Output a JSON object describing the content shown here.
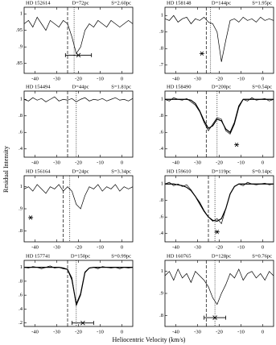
{
  "ylabel": "Residual Intensity",
  "xlabel": "Heliocentric Velocity (km/s)",
  "chart_data": [
    {
      "type": "line",
      "title": "HD 152614",
      "distance": "D=72pc",
      "size": "S=2.60pc",
      "x": [
        -45,
        -43,
        -41,
        -39,
        -37,
        -35,
        -33,
        -31,
        -29,
        -27,
        -25,
        -23,
        -21,
        -19,
        -17,
        -15,
        -13,
        -11,
        -9,
        -7,
        -5,
        -3,
        -1,
        1,
        3,
        5
      ],
      "values": [
        0.97,
        0.98,
        0.96,
        0.99,
        0.97,
        0.95,
        0.98,
        0.97,
        0.96,
        0.98,
        0.97,
        0.93,
        0.88,
        0.9,
        0.95,
        0.97,
        0.96,
        0.98,
        0.97,
        0.96,
        0.98,
        0.97,
        0.96,
        0.97,
        0.98,
        0.97
      ],
      "xlim": [
        -45,
        5
      ],
      "xticks": [
        -40,
        -30,
        -20,
        -10,
        0
      ],
      "ylim": [
        0.82,
        1.02
      ],
      "yticks": [
        1,
        {
          "value": 0.95,
          "label": ".95"
        },
        {
          "value": 0.9,
          "label": ".9"
        },
        {
          "value": 0.85,
          "label": ".85"
        }
      ],
      "vlines": [
        {
          "x": -25,
          "style": "dashed"
        },
        {
          "x": -22,
          "style": "dotted"
        }
      ],
      "errorbar": {
        "x": -20,
        "xerr": 6,
        "y": 0.875
      }
    },
    {
      "type": "line",
      "title": "HD 158148",
      "distance": "D=144pc",
      "size": "S=1.95pc",
      "x": [
        -45,
        -43,
        -41,
        -39,
        -37,
        -35,
        -33,
        -31,
        -29,
        -27,
        -25,
        -23,
        -21,
        -19,
        -17,
        -15,
        -13,
        -11,
        -9,
        -7,
        -5,
        -3,
        -1,
        1,
        3,
        5
      ],
      "values": [
        0.98,
        0.97,
        1.0,
        0.96,
        0.98,
        0.99,
        0.95,
        0.98,
        0.97,
        0.99,
        0.96,
        0.95,
        0.9,
        0.72,
        0.85,
        0.97,
        0.98,
        0.96,
        0.99,
        0.97,
        0.98,
        0.96,
        0.99,
        0.97,
        0.98,
        0.97
      ],
      "xlim": [
        -45,
        5
      ],
      "xticks": [
        -40,
        -30,
        -20,
        -10,
        0
      ],
      "ylim": [
        0.65,
        1.05
      ],
      "yticks": [
        1,
        {
          "value": 0.9,
          "label": ".9"
        },
        {
          "value": 0.8,
          "label": ".8"
        },
        {
          "value": 0.7,
          "label": ".7"
        }
      ],
      "vlines": [
        {
          "x": -26,
          "style": "dashed"
        },
        {
          "x": -24,
          "style": "dotted"
        }
      ],
      "star": {
        "x": -28,
        "y": 0.77
      }
    },
    {
      "type": "line",
      "title": "HD 154494",
      "distance": "D=44pc",
      "size": "S=1.81pc",
      "x": [
        -45,
        -43,
        -41,
        -39,
        -37,
        -35,
        -33,
        -31,
        -29,
        -27,
        -25,
        -23,
        -21,
        -19,
        -17,
        -15,
        -13,
        -11,
        -9,
        -7,
        -5,
        -3,
        -1,
        1,
        3,
        5
      ],
      "values": [
        1.0,
        0.98,
        1.02,
        0.99,
        1.01,
        0.97,
        1.0,
        1.03,
        0.98,
        1.0,
        0.99,
        1.01,
        0.97,
        1.0,
        1.02,
        0.98,
        1.0,
        0.99,
        1.01,
        0.98,
        1.0,
        1.02,
        0.99,
        1.0,
        0.98,
        1.01
      ],
      "xlim": [
        -45,
        5
      ],
      "xticks": [
        -40,
        -30,
        -20,
        -10,
        0
      ],
      "ylim": [
        0.3,
        1.1
      ],
      "yticks": [
        1,
        {
          "value": 0.8,
          "label": ".8"
        },
        {
          "value": 0.6,
          "label": ".6"
        },
        {
          "value": 0.4,
          "label": ".4"
        }
      ],
      "vlines": [
        {
          "x": -25,
          "style": "dashed"
        },
        {
          "x": -21,
          "style": "dotted"
        }
      ]
    },
    {
      "type": "line",
      "title": "HD 158490",
      "distance": "D=200pc",
      "size": "S=0.54pc",
      "x": [
        -45,
        -43,
        -41,
        -39,
        -37,
        -35,
        -33,
        -31,
        -29,
        -27,
        -25,
        -23,
        -21,
        -19,
        -17,
        -15,
        -13,
        -11,
        -9,
        -7,
        -5,
        -3,
        -1,
        1,
        3,
        5
      ],
      "values": [
        1.0,
        0.98,
        1.02,
        1.0,
        0.99,
        1.01,
        0.97,
        0.93,
        0.85,
        0.72,
        0.62,
        0.7,
        0.78,
        0.76,
        0.62,
        0.58,
        0.7,
        0.9,
        1.0,
        0.98,
        1.02,
        0.99,
        1.0,
        1.01,
        0.98,
        1.0
      ],
      "fit": [
        1,
        1,
        1,
        1,
        1,
        1,
        0.99,
        0.95,
        0.86,
        0.74,
        0.65,
        0.68,
        0.76,
        0.74,
        0.64,
        0.6,
        0.72,
        0.92,
        1,
        1,
        1,
        1,
        1,
        1,
        1,
        1
      ],
      "xlim": [
        -45,
        5
      ],
      "xticks": [
        -40,
        -30,
        -20,
        -10,
        0
      ],
      "ylim": [
        0.3,
        1.1
      ],
      "yticks": [
        1,
        {
          "value": 0.8,
          "label": ".8"
        },
        {
          "value": 0.6,
          "label": ".6"
        },
        {
          "value": 0.4,
          "label": ".4"
        }
      ],
      "vlines": [
        {
          "x": -26,
          "style": "dashed"
        },
        {
          "x": -21,
          "style": "dotted"
        }
      ],
      "star": {
        "x": -12,
        "y": 0.45
      }
    },
    {
      "type": "line",
      "title": "HD 156164",
      "distance": "D=24pc",
      "size": "S=3.34pc",
      "x": [
        -45,
        -43,
        -41,
        -39,
        -37,
        -35,
        -33,
        -31,
        -29,
        -27,
        -25,
        -23,
        -21,
        -19,
        -17,
        -15,
        -13,
        -11,
        -9,
        -7,
        -5,
        -3,
        -1,
        1,
        3,
        5
      ],
      "values": [
        0.99,
        1.0,
        0.98,
        1.01,
        0.99,
        0.97,
        1.0,
        0.99,
        1.01,
        0.98,
        1.0,
        0.98,
        0.92,
        0.9,
        0.96,
        1.0,
        0.99,
        1.01,
        0.98,
        1.0,
        0.99,
        1.01,
        0.98,
        1.0,
        0.99,
        1.0
      ],
      "xlim": [
        -45,
        5
      ],
      "xticks": [
        -40,
        -30,
        -20,
        -10,
        0
      ],
      "ylim": [
        0.75,
        1.05
      ],
      "yticks": [
        1,
        {
          "value": 0.9,
          "label": ".9"
        },
        {
          "value": 0.8,
          "label": ".8"
        }
      ],
      "vlines": [
        {
          "x": -27,
          "style": "dashed"
        },
        {
          "x": -24,
          "style": "dotted"
        }
      ],
      "star": {
        "x": -42,
        "y": 0.86
      }
    },
    {
      "type": "line",
      "title": "HD 159610",
      "distance": "D=119pc",
      "size": "S=0.14pc",
      "x": [
        -45,
        -43,
        -41,
        -39,
        -37,
        -35,
        -33,
        -31,
        -29,
        -27,
        -25,
        -23,
        -21,
        -19,
        -17,
        -15,
        -13,
        -11,
        -9,
        -7,
        -5,
        -3,
        -1,
        1,
        3,
        5
      ],
      "values": [
        1.0,
        1.02,
        0.98,
        1.0,
        0.97,
        0.99,
        0.93,
        0.85,
        0.78,
        0.68,
        0.6,
        0.55,
        0.58,
        0.52,
        0.7,
        0.88,
        0.97,
        1.0,
        0.98,
        1.02,
        1.0,
        0.99,
        1.0,
        1.01,
        0.99,
        1.0
      ],
      "fit": [
        1,
        1,
        1,
        0.99,
        0.98,
        0.96,
        0.92,
        0.85,
        0.76,
        0.67,
        0.6,
        0.56,
        0.55,
        0.58,
        0.7,
        0.88,
        0.97,
        1,
        1,
        1,
        1,
        1,
        1,
        1,
        1,
        1
      ],
      "xlim": [
        -45,
        5
      ],
      "xticks": [
        -40,
        -30,
        -20,
        -10,
        0
      ],
      "ylim": [
        0.3,
        1.1
      ],
      "yticks": [
        1,
        {
          "value": 0.8,
          "label": ".8"
        },
        {
          "value": 0.6,
          "label": ".6"
        },
        {
          "value": 0.4,
          "label": ".4"
        }
      ],
      "vlines": [
        {
          "x": -25,
          "style": "dashed"
        },
        {
          "x": -22,
          "style": "dotted"
        }
      ],
      "star": {
        "x": -21,
        "y": 0.42
      }
    },
    {
      "type": "line",
      "title": "HD 157741",
      "distance": "D=150pc",
      "size": "S=0.99pc",
      "x": [
        -45,
        -43,
        -41,
        -39,
        -37,
        -35,
        -33,
        -31,
        -29,
        -27,
        -25,
        -23,
        -21,
        -19,
        -17,
        -15,
        -13,
        -11,
        -9,
        -7,
        -5,
        -3,
        -1,
        1,
        3,
        5
      ],
      "values": [
        1.0,
        0.99,
        1.01,
        1.0,
        0.98,
        1.0,
        1.02,
        0.99,
        1.0,
        0.98,
        0.97,
        0.85,
        0.45,
        0.6,
        0.92,
        0.99,
        1.0,
        0.98,
        1.01,
        1.0,
        0.99,
        1.0,
        0.98,
        1.0,
        0.99,
        1.0
      ],
      "fit": [
        1,
        1,
        1,
        1,
        1,
        1,
        1,
        1,
        1,
        0.99,
        0.97,
        0.82,
        0.47,
        0.62,
        0.93,
        0.99,
        1,
        1,
        1,
        1,
        1,
        1,
        1,
        1,
        1,
        1
      ],
      "xlim": [
        -45,
        5
      ],
      "xticks": [
        -40,
        -30,
        -20,
        -10,
        0
      ],
      "ylim": [
        0.15,
        1.1
      ],
      "yticks": [
        1,
        {
          "value": 0.8,
          "label": ".8"
        },
        {
          "value": 0.6,
          "label": ".6"
        },
        {
          "value": 0.4,
          "label": ".4"
        },
        {
          "value": 0.2,
          "label": ".2"
        }
      ],
      "vlines": [
        {
          "x": -25,
          "style": "dashed"
        },
        {
          "x": -21,
          "style": "dotted"
        }
      ],
      "errorbar": {
        "x": -18,
        "xerr": 5,
        "y": 0.2
      }
    },
    {
      "type": "line",
      "title": "HD 160765",
      "distance": "D=128pc",
      "size": "S=0.76pc",
      "x": [
        -45,
        -43,
        -41,
        -39,
        -37,
        -35,
        -33,
        -31,
        -29,
        -27,
        -25,
        -23,
        -21,
        -19,
        -17,
        -15,
        -13,
        -11,
        -9,
        -7,
        -5,
        -3,
        -1,
        1,
        3,
        5
      ],
      "values": [
        0.98,
        1.0,
        0.96,
        1.01,
        0.97,
        0.99,
        0.95,
        1.0,
        0.98,
        0.96,
        0.93,
        0.88,
        0.85,
        0.9,
        0.94,
        0.99,
        0.97,
        1.01,
        0.96,
        0.99,
        1.0,
        0.97,
        0.99,
        0.96,
        1.0,
        0.98
      ],
      "xlim": [
        -45,
        5
      ],
      "xticks": [
        -40,
        -30,
        -20,
        -10,
        0
      ],
      "ylim": [
        0.75,
        1.05
      ],
      "yticks": [
        1,
        {
          "value": 0.9,
          "label": ".9"
        },
        {
          "value": 0.8,
          "label": ".8"
        }
      ],
      "vlines": [
        {
          "x": -26,
          "style": "dashed"
        },
        {
          "x": -22,
          "style": "dotted"
        }
      ],
      "errorbar": {
        "x": -22,
        "xerr": 5,
        "y": 0.79
      }
    }
  ]
}
